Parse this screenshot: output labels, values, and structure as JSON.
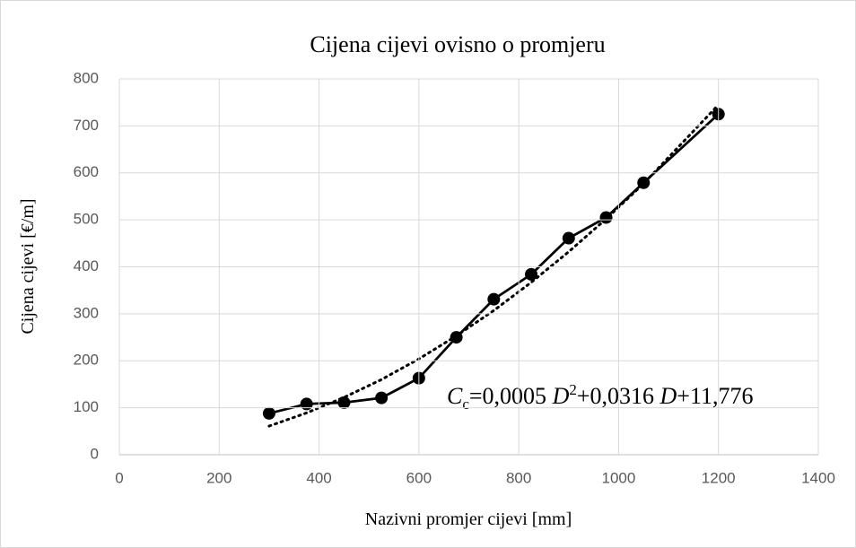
{
  "chart_data": {
    "type": "line",
    "title": "Cijena cijevi ovisno o promjeru",
    "x_label": "Nazivni promjer cijevi [mm]",
    "y_label": "Cijena cijevi [€/m]",
    "annotation": [
      "C",
      "c",
      "=0,0005 ",
      "D",
      "2",
      "+0,0316 ",
      "D",
      "+11,776"
    ],
    "x": [
      300,
      375,
      450,
      525,
      600,
      675,
      750,
      825,
      900,
      975,
      1050,
      1200
    ],
    "series": [
      {
        "color": "#000000",
        "style": "solid",
        "markers": true,
        "values": [
          88,
          108,
          111,
          121,
          163,
          250,
          331,
          384,
          461,
          505,
          579,
          725
        ]
      },
      {
        "color": "#000000",
        "style": "dotted",
        "markers": false,
        "values": [
          61,
          89,
          122,
          160,
          204,
          253,
          307,
          367,
          432,
          502,
          577,
          745
        ]
      }
    ],
    "xlim": [
      0,
      1400
    ],
    "xticks": [
      0,
      200,
      400,
      600,
      800,
      1000,
      1200,
      1400
    ],
    "ylim": [
      0,
      800
    ],
    "yticks": [
      0,
      100,
      200,
      300,
      400,
      500,
      600,
      700,
      800
    ],
    "grid": true
  }
}
